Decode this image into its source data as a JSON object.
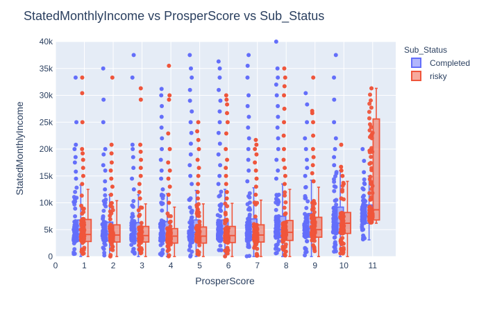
{
  "chart_data": {
    "type": "box",
    "title": "StatedMonthlyIncome vs ProsperScore vs Sub_Status",
    "xlabel": "ProsperScore",
    "ylabel": "StatedMonthlyIncome",
    "xlim": [
      0,
      11.8
    ],
    "ylim": [
      0,
      40000
    ],
    "x_ticks": [
      0,
      1,
      2,
      3,
      4,
      5,
      6,
      7,
      8,
      9,
      10,
      11
    ],
    "y_ticks": [
      0,
      5000,
      10000,
      15000,
      20000,
      25000,
      30000,
      35000,
      40000
    ],
    "y_tick_labels": [
      "0",
      "5k",
      "10k",
      "15k",
      "20k",
      "25k",
      "30k",
      "35k",
      "40k"
    ],
    "legend": {
      "title": "Sub_Status",
      "position": "top-right"
    },
    "series": [
      {
        "name": "Completed",
        "color": "#636efa",
        "boxes": [
          {
            "x": 1,
            "q1": 2900,
            "median": 4200,
            "q3": 6800,
            "lower": 0,
            "upper": 13300,
            "outliers": [
              14500,
              15800,
              17500,
              18500,
              20000,
              20800,
              25000,
              33300
            ]
          },
          {
            "x": 2,
            "q1": 2900,
            "median": 4200,
            "q3": 6400,
            "lower": 0,
            "upper": 11500,
            "outliers": [
              12500,
              14000,
              16000,
              17000,
              19000,
              20000,
              25000,
              29200,
              35000
            ]
          },
          {
            "x": 3,
            "q1": 2900,
            "median": 4200,
            "q3": 6300,
            "lower": 0,
            "upper": 11500,
            "outliers": [
              12500,
              14500,
              16500,
              18500,
              20000,
              20800,
              33300,
              37500
            ]
          },
          {
            "x": 4,
            "q1": 2900,
            "median": 4200,
            "q3": 6500,
            "lower": 0,
            "upper": 11700,
            "outliers": [
              12500,
              14500,
              16000,
              18000,
              20000,
              22000,
              24000,
              26000,
              28000,
              30000,
              31200
            ]
          },
          {
            "x": 5,
            "q1": 3000,
            "median": 4500,
            "q3": 6800,
            "lower": 0,
            "upper": 12300,
            "outliers": [
              13500,
              15000,
              17000,
              19000,
              21000,
              23000,
              25000,
              27000,
              29000,
              31000,
              33300,
              35000,
              37500
            ]
          },
          {
            "x": 6,
            "q1": 3000,
            "median": 4500,
            "q3": 6800,
            "lower": 0,
            "upper": 12500,
            "outliers": [
              13500,
              15000,
              17000,
              19000,
              21000,
              23000,
              25000,
              27000,
              29000,
              31000,
              33300,
              35000,
              36300
            ]
          },
          {
            "x": 7,
            "q1": 3100,
            "median": 4600,
            "q3": 7000,
            "lower": 0,
            "upper": 12800,
            "outliers": [
              14000,
              16000,
              18000,
              20000,
              22000,
              24000,
              26000,
              28000,
              30000,
              33300,
              35500,
              37500
            ]
          },
          {
            "x": 8,
            "q1": 3500,
            "median": 5000,
            "q3": 7500,
            "lower": 0,
            "upper": 13500,
            "outliers": [
              14500,
              16000,
              18000,
              20000,
              22000,
              24000,
              26000,
              28000,
              30000,
              32000,
              33300,
              35000,
              40000
            ]
          },
          {
            "x": 9,
            "q1": 3600,
            "median": 5200,
            "q3": 8000,
            "lower": 0,
            "upper": 14200,
            "outliers": [
              15000,
              16500,
              18000,
              20000,
              22000,
              25000,
              28300,
              30400
            ]
          },
          {
            "x": 10,
            "q1": 4300,
            "median": 6200,
            "q3": 9200,
            "lower": 0,
            "upper": 16000,
            "outliers": [
              17000,
              18500,
              20000,
              22000,
              25000,
              29200,
              33300,
              37500
            ]
          },
          {
            "x": 11,
            "q1": 6200,
            "median": 7500,
            "q3": 9600,
            "lower": 3100,
            "upper": 15000,
            "outliers": [
              3200,
              3500,
              3900,
              6400,
              8700,
              9200,
              10400,
              11300,
              12500,
              13500,
              15700,
              17800,
              20000
            ]
          }
        ]
      },
      {
        "name": "risky",
        "color": "#ef553b",
        "boxes": [
          {
            "x": 1,
            "q1": 2800,
            "median": 4100,
            "q3": 6900,
            "lower": 0,
            "upper": 12500,
            "outliers": [
              13500,
              15000,
              16500,
              18000,
              19200,
              20000,
              25000,
              30400,
              33300
            ]
          },
          {
            "x": 2,
            "q1": 2700,
            "median": 4000,
            "q3": 5900,
            "lower": 0,
            "upper": 10400,
            "outliers": [
              11500,
              13000,
              14500,
              16000,
              17500,
              19200,
              20800,
              33300
            ]
          },
          {
            "x": 3,
            "q1": 2700,
            "median": 3900,
            "q3": 5600,
            "lower": 0,
            "upper": 9800,
            "outliers": [
              10800,
              12000,
              13500,
              15000,
              16500,
              18000,
              19500,
              20800,
              29200,
              31300
            ]
          },
          {
            "x": 4,
            "q1": 2500,
            "median": 3800,
            "q3": 5200,
            "lower": 0,
            "upper": 9200,
            "outliers": [
              10000,
              11500,
              13000,
              14500,
              16000,
              17500,
              20000,
              22900,
              29200,
              30000,
              35500
            ]
          },
          {
            "x": 5,
            "q1": 2500,
            "median": 3800,
            "q3": 5500,
            "lower": 0,
            "upper": 9800,
            "outliers": [
              10800,
              12000,
              13500,
              15000,
              16500,
              18000,
              20000,
              21700,
              23300,
              25000
            ]
          },
          {
            "x": 6,
            "q1": 2600,
            "median": 3900,
            "q3": 5600,
            "lower": 0,
            "upper": 9900,
            "outliers": [
              10800,
              12000,
              13500,
              15000,
              16500,
              18000,
              20000,
              22900,
              25000,
              26700,
              28300,
              29200,
              30000
            ]
          },
          {
            "x": 7,
            "q1": 2700,
            "median": 4000,
            "q3": 5900,
            "lower": 0,
            "upper": 10500,
            "outliers": [
              11500,
              13000,
              14500,
              16000,
              17500,
              19000,
              20000,
              20800,
              21700
            ]
          },
          {
            "x": 8,
            "q1": 3000,
            "median": 4500,
            "q3": 6700,
            "lower": 0,
            "upper": 12500,
            "outliers": [
              13500,
              15000,
              16500,
              18000,
              20000,
              22500,
              25000,
              27500,
              30000,
              31700,
              33300,
              35000
            ]
          },
          {
            "x": 9,
            "q1": 3600,
            "median": 5000,
            "q3": 7300,
            "lower": 0,
            "upper": 12900,
            "outliers": [
              14000,
              15500,
              17000,
              18500,
              20000,
              22500,
              25000,
              26700,
              27100,
              33300
            ]
          },
          {
            "x": 10,
            "q1": 4300,
            "median": 6200,
            "q3": 8200,
            "lower": 0,
            "upper": 14000,
            "outliers": [
              15000,
              16000,
              16700,
              20800
            ]
          },
          {
            "x": 11,
            "q1": 6800,
            "median": 8700,
            "q3": 25600,
            "lower": 6200,
            "upper": 31300,
            "outliers": [
              6400,
              8700,
              31300
            ]
          }
        ]
      }
    ]
  }
}
